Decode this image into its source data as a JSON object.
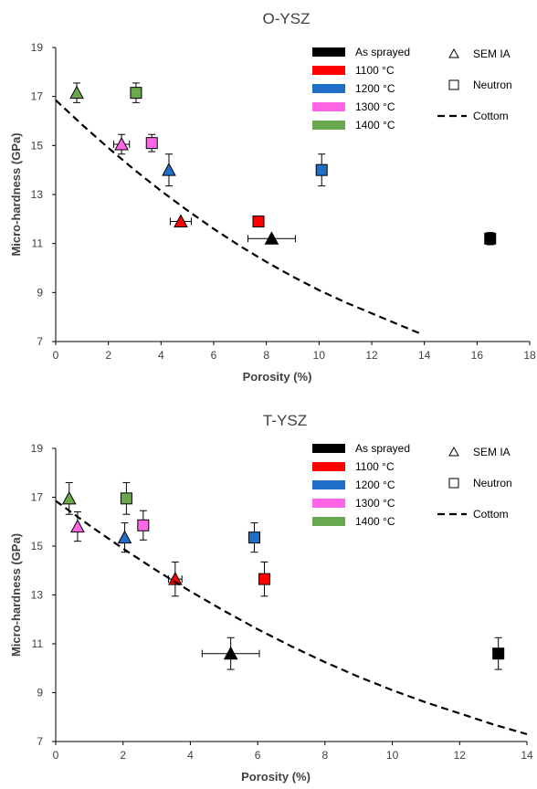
{
  "chart_data": [
    {
      "type": "scatter",
      "title": "O-YSZ",
      "xlabel": "Porosity (%)",
      "ylabel": "Micro-hardness (GPa)",
      "xlim": [
        0,
        18
      ],
      "ylim": [
        7,
        19
      ],
      "xticks": [
        0,
        2,
        4,
        6,
        8,
        10,
        12,
        14,
        16,
        18
      ],
      "yticks": [
        7,
        9,
        11,
        13,
        15,
        17,
        19
      ],
      "grid": false,
      "legend_position": "top-right",
      "legend_colors": [
        {
          "label": "As sprayed",
          "color": "#000000"
        },
        {
          "label": "1100 °C",
          "color": "#ff0000"
        },
        {
          "label": "1200 °C",
          "color": "#1f6fc9"
        },
        {
          "label": "1300 °C",
          "color": "#ff66e6"
        },
        {
          "label": "1400 °C",
          "color": "#6aa84f"
        }
      ],
      "legend_markers": [
        {
          "label": "SEM IA",
          "marker": "triangle"
        },
        {
          "label": "Neutron",
          "marker": "square"
        },
        {
          "label": "Cottom",
          "marker": "dashed-line"
        }
      ],
      "series": [
        {
          "name": "SEM IA",
          "marker": "triangle",
          "points": [
            {
              "condition": "As sprayed",
              "x": 8.2,
              "y": 11.2,
              "xerr": 0.9,
              "yerr": 0
            },
            {
              "condition": "1100 °C",
              "x": 4.75,
              "y": 11.9,
              "xerr": 0.4,
              "yerr": 0
            },
            {
              "condition": "1200 °C",
              "x": 4.3,
              "y": 14.0,
              "xerr": 0,
              "yerr": 0.65
            },
            {
              "condition": "1300 °C",
              "x": 2.5,
              "y": 15.05,
              "xerr": 0.3,
              "yerr": 0.4
            },
            {
              "condition": "1400 °C",
              "x": 0.8,
              "y": 17.15,
              "xerr": 0,
              "yerr": 0.4
            }
          ]
        },
        {
          "name": "Neutron",
          "marker": "square",
          "points": [
            {
              "condition": "As sprayed",
              "x": 16.5,
              "y": 11.2,
              "xerr": 0,
              "yerr": 0.25
            },
            {
              "condition": "1100 °C",
              "x": 7.7,
              "y": 11.9,
              "xerr": 0,
              "yerr": 0
            },
            {
              "condition": "1200 °C",
              "x": 10.1,
              "y": 14.0,
              "xerr": 0,
              "yerr": 0.65
            },
            {
              "condition": "1300 °C",
              "x": 3.65,
              "y": 15.1,
              "xerr": 0,
              "yerr": 0.35
            },
            {
              "condition": "1400 °C",
              "x": 3.05,
              "y": 17.15,
              "xerr": 0,
              "yerr": 0.4
            }
          ]
        },
        {
          "name": "Cottom",
          "marker": "dashed-line",
          "curve": [
            [
              0,
              16.85
            ],
            [
              1,
              15.85
            ],
            [
              2,
              14.9
            ],
            [
              3,
              14.0
            ],
            [
              4,
              13.15
            ],
            [
              5,
              12.35
            ],
            [
              6,
              11.6
            ],
            [
              7,
              10.9
            ],
            [
              8,
              10.25
            ],
            [
              9,
              9.65
            ],
            [
              10,
              9.1
            ],
            [
              11,
              8.6
            ],
            [
              12,
              8.15
            ],
            [
              13,
              7.7
            ],
            [
              13.9,
              7.3
            ]
          ]
        }
      ]
    },
    {
      "type": "scatter",
      "title": "T-YSZ",
      "xlabel": "Porosity (%)",
      "ylabel": "Micro-hardness (GPa)",
      "xlim": [
        0,
        14
      ],
      "ylim": [
        7,
        19
      ],
      "xticks": [
        0,
        2,
        4,
        6,
        8,
        10,
        12,
        14
      ],
      "yticks": [
        7,
        9,
        11,
        13,
        15,
        17,
        19
      ],
      "grid": false,
      "legend_position": "top-right",
      "legend_colors": [
        {
          "label": "As sprayed",
          "color": "#000000"
        },
        {
          "label": "1100 °C",
          "color": "#ff0000"
        },
        {
          "label": "1200 °C",
          "color": "#1f6fc9"
        },
        {
          "label": "1300 °C",
          "color": "#ff66e6"
        },
        {
          "label": "1400 °C",
          "color": "#6aa84f"
        }
      ],
      "legend_markers": [
        {
          "label": "SEM IA",
          "marker": "triangle"
        },
        {
          "label": "Neutron",
          "marker": "square"
        },
        {
          "label": "Cottom",
          "marker": "dashed-line"
        }
      ],
      "series": [
        {
          "name": "SEM IA",
          "marker": "triangle",
          "points": [
            {
              "condition": "As sprayed",
              "x": 5.2,
              "y": 10.6,
              "xerr": 0.85,
              "yerr": 0.65
            },
            {
              "condition": "1100 °C",
              "x": 3.55,
              "y": 13.65,
              "xerr": 0.2,
              "yerr": 0.7
            },
            {
              "condition": "1200 °C",
              "x": 2.05,
              "y": 15.35,
              "xerr": 0,
              "yerr": 0.6
            },
            {
              "condition": "1300 °C",
              "x": 0.65,
              "y": 15.8,
              "xerr": 0,
              "yerr": 0.6
            },
            {
              "condition": "1400 °C",
              "x": 0.4,
              "y": 16.95,
              "xerr": 0,
              "yerr": 0.65
            }
          ]
        },
        {
          "name": "Neutron",
          "marker": "square",
          "points": [
            {
              "condition": "As sprayed",
              "x": 13.15,
              "y": 10.6,
              "xerr": 0,
              "yerr": 0.65
            },
            {
              "condition": "1100 °C",
              "x": 6.2,
              "y": 13.65,
              "xerr": 0,
              "yerr": 0.7
            },
            {
              "condition": "1200 °C",
              "x": 5.9,
              "y": 15.35,
              "xerr": 0,
              "yerr": 0.6
            },
            {
              "condition": "1300 °C",
              "x": 2.6,
              "y": 15.85,
              "xerr": 0,
              "yerr": 0.6
            },
            {
              "condition": "1400 °C",
              "x": 2.1,
              "y": 16.95,
              "xerr": 0,
              "yerr": 0.65
            }
          ]
        },
        {
          "name": "Cottom",
          "marker": "dashed-line",
          "curve": [
            [
              0,
              16.85
            ],
            [
              1,
              15.85
            ],
            [
              2,
              14.9
            ],
            [
              3,
              14.0
            ],
            [
              4,
              13.15
            ],
            [
              5,
              12.35
            ],
            [
              6,
              11.6
            ],
            [
              7,
              10.9
            ],
            [
              8,
              10.25
            ],
            [
              9,
              9.65
            ],
            [
              10,
              9.1
            ],
            [
              11,
              8.6
            ],
            [
              12,
              8.15
            ],
            [
              13,
              7.7
            ],
            [
              14,
              7.3
            ]
          ]
        }
      ]
    }
  ]
}
